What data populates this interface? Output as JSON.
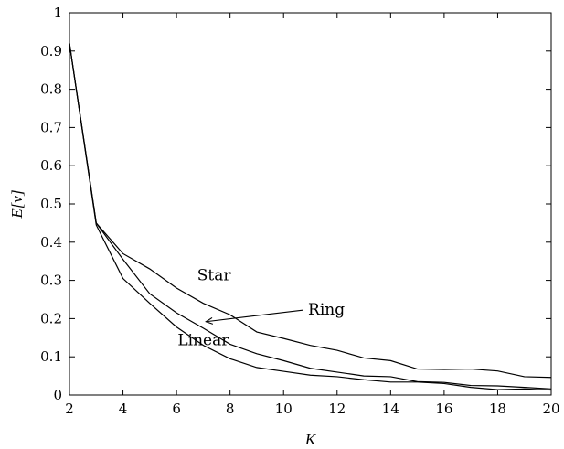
{
  "chart_data": {
    "type": "line",
    "xlabel": "K",
    "ylabel": "E[ν]",
    "xlim": [
      2,
      20
    ],
    "ylim": [
      0,
      1
    ],
    "xticks": [
      2,
      4,
      6,
      8,
      10,
      12,
      14,
      16,
      18,
      20
    ],
    "yticks": [
      0,
      0.1,
      0.2,
      0.3,
      0.4,
      0.5,
      0.6,
      0.7,
      0.8,
      0.9,
      1
    ],
    "ytick_labels": [
      "0",
      "0.1",
      "0.2",
      "0.3",
      "0.4",
      "0.5",
      "0.6",
      "0.7",
      "0.8",
      "0.9",
      "1"
    ],
    "grid": false,
    "series": [
      {
        "name": "Star",
        "x": [
          2,
          3,
          4,
          5,
          6,
          7,
          8,
          9,
          10,
          11,
          12,
          13,
          14,
          15,
          16,
          17,
          18,
          19,
          20
        ],
        "values": [
          0.92,
          0.45,
          0.37,
          0.33,
          0.28,
          0.24,
          0.21,
          0.165,
          0.148,
          0.13,
          0.117,
          0.097,
          0.09,
          0.068,
          0.067,
          0.068,
          0.063,
          0.048,
          0.046
        ]
      },
      {
        "name": "Ring",
        "x": [
          2,
          3,
          4,
          5,
          6,
          7,
          8,
          9,
          10,
          11,
          12,
          13,
          14,
          15,
          16,
          17,
          18,
          19,
          20
        ],
        "values": [
          0.92,
          0.45,
          0.355,
          0.265,
          0.215,
          0.175,
          0.133,
          0.108,
          0.09,
          0.07,
          0.06,
          0.05,
          0.048,
          0.035,
          0.033,
          0.025,
          0.024,
          0.02,
          0.016
        ]
      },
      {
        "name": "Linear",
        "x": [
          2,
          3,
          4,
          5,
          6,
          7,
          8,
          9,
          10,
          11,
          12,
          13,
          14,
          15,
          16,
          17,
          18,
          19,
          20
        ],
        "values": [
          0.92,
          0.445,
          0.305,
          0.24,
          0.178,
          0.13,
          0.095,
          0.072,
          0.062,
          0.052,
          0.048,
          0.04,
          0.034,
          0.034,
          0.03,
          0.02,
          0.014,
          0.016,
          0.013
        ]
      }
    ],
    "annotations": [
      {
        "text": "Star",
        "x": 7.4,
        "y": 0.3
      },
      {
        "text": "Ring",
        "x": 11.6,
        "y": 0.21,
        "arrow_to": {
          "x": 7.1,
          "y": 0.192
        }
      },
      {
        "text": "Linear",
        "x": 7.0,
        "y": 0.13
      }
    ]
  }
}
